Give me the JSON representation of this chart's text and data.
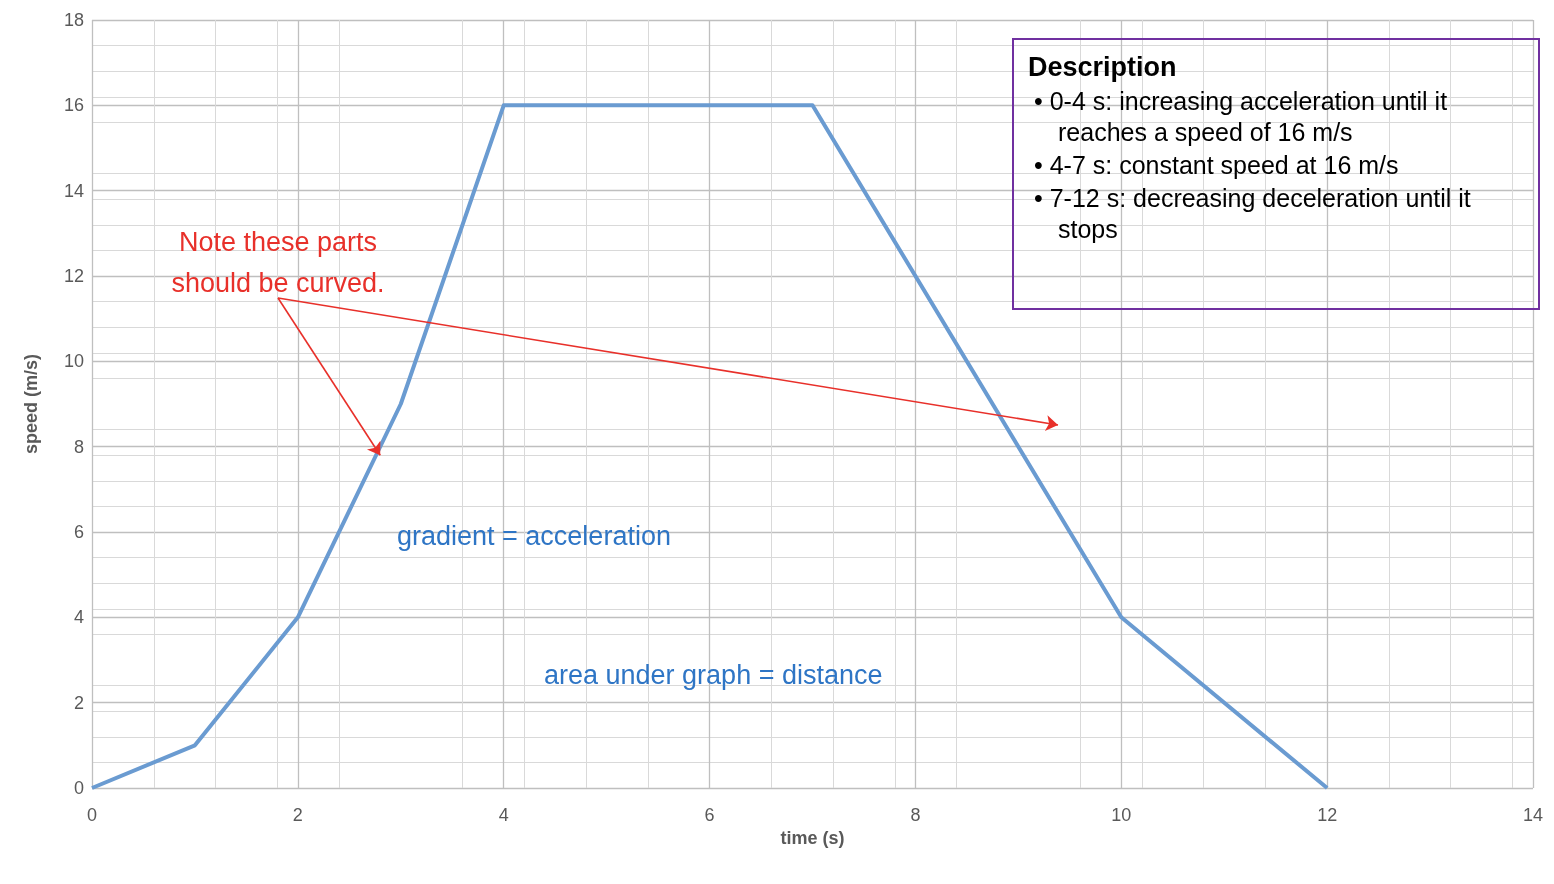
{
  "chart_data": {
    "type": "line",
    "xlabel": "time (s)",
    "ylabel": "speed (m/s)",
    "x": [
      0,
      1,
      2,
      3,
      4,
      7,
      10,
      12
    ],
    "series": [
      {
        "color": "#6a9bd1",
        "values": [
          0,
          1,
          4,
          9,
          16,
          16,
          4,
          0
        ]
      }
    ],
    "xlim": [
      0,
      14
    ],
    "xticks": [
      0,
      2,
      4,
      6,
      8,
      10,
      12,
      14
    ],
    "ylim": [
      0,
      18
    ],
    "yticks": [
      0,
      2,
      4,
      6,
      8,
      10,
      12,
      14,
      16,
      18
    ],
    "grid": true,
    "marker": "none",
    "line_style": "solid",
    "annotations": [
      {
        "text": "Note these parts should be curved.",
        "x": 2.8,
        "y": 7.8
      },
      "gradient = acceleration",
      "area under graph = distance",
      "Description",
      "• 0-4 s: increasing acceleration until it reaches a speed of 16 m/s",
      "• 4-7 s: constant speed at 16 m/s",
      "• 7-12 s: decreasing deceleration until it stops"
    ]
  }
}
